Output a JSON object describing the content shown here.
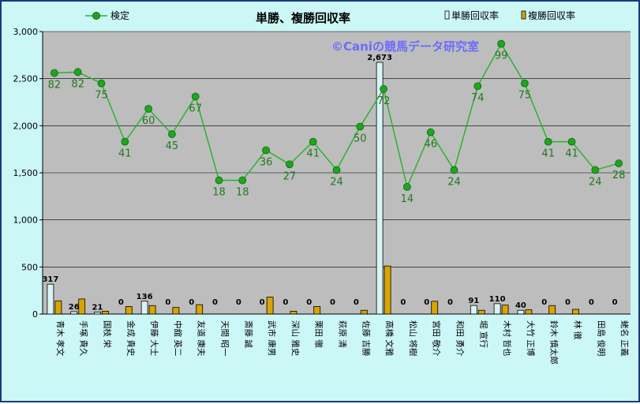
{
  "chart_data": {
    "type": "bar",
    "title": "単勝、複勝回収率",
    "watermark": "©Caniの競馬データ研究室",
    "ylim": [
      0,
      3000
    ],
    "yticks": [
      "0",
      "500",
      "1,000",
      "1,500",
      "2,000",
      "2,500",
      "3,000"
    ],
    "legend": [
      "検定",
      "単勝回収率",
      "複勝回収率"
    ],
    "categories": [
      "青木 孝文",
      "手塚 貴久",
      "国枝 栄",
      "金成 貴史",
      "伊藤 大士",
      "中舘 英二",
      "友道 康夫",
      "天間 昭一",
      "斎藤 誠",
      "武市 康男",
      "深山 雅史",
      "栗田 徹",
      "萩原 清",
      "佐藤 吉勝",
      "高橋 文雅",
      "松山 将樹",
      "宮田 敬介",
      "和田 勇介",
      "堀 宣行",
      "木村 哲也",
      "大竹 正博",
      "鈴木 慎太郎",
      "林 徹",
      "田島 俊明",
      "蛯名 正義"
    ],
    "series": [
      {
        "name": "単勝回収率",
        "values": [
          317,
          26,
          21,
          0,
          136,
          0,
          0,
          0,
          0,
          0,
          0,
          0,
          0,
          0,
          2673,
          0,
          0,
          0,
          91,
          110,
          40,
          0,
          0,
          0,
          0
        ],
        "labels": [
          "317",
          "26",
          "21",
          "0",
          "136",
          "0",
          "0",
          "0",
          "0",
          "0",
          "0",
          "0",
          "0",
          "0",
          "2,673",
          "0",
          "0",
          "0",
          "91",
          "110",
          "40",
          "0",
          "0",
          "0",
          "0"
        ],
        "color": "#d8f4f7"
      },
      {
        "name": "複勝回収率",
        "values": [
          140,
          160,
          30,
          80,
          90,
          70,
          100,
          0,
          0,
          180,
          30,
          80,
          0,
          40,
          510,
          0,
          135,
          0,
          40,
          95,
          45,
          90,
          50,
          0,
          0
        ],
        "color": "#d9a400"
      },
      {
        "name": "検定",
        "values": [
          2560,
          2570,
          2450,
          1830,
          2180,
          1910,
          2310,
          1420,
          1420,
          1740,
          1590,
          1830,
          1530,
          1990,
          2390,
          1350,
          1930,
          1530,
          2420,
          2870,
          2450,
          1830,
          1830,
          1530,
          1600
        ],
        "labels": [
          "82",
          "82",
          "75",
          "41",
          "60",
          "45",
          "67",
          "18",
          "18",
          "36",
          "27",
          "41",
          "24",
          "50",
          "72",
          "14",
          "46",
          "24",
          "74",
          "99",
          "75",
          "41",
          "41",
          "24",
          "28"
        ],
        "color": "#2db32d"
      }
    ]
  }
}
